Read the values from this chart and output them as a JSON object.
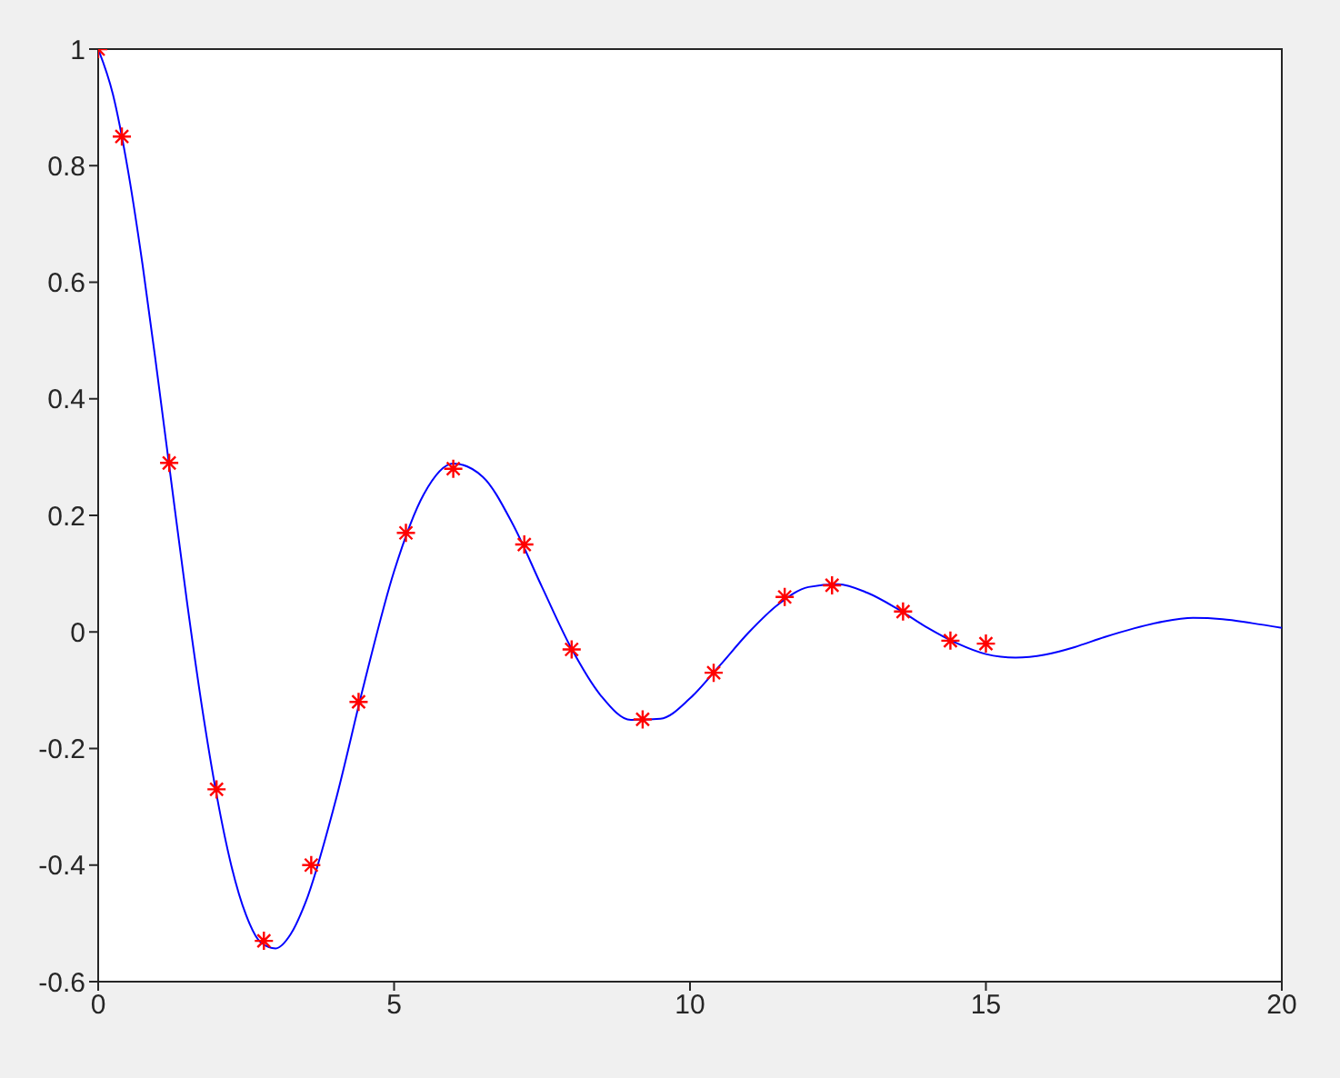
{
  "chart_data": {
    "type": "line",
    "xlim": [
      0,
      20
    ],
    "xticks": [
      0,
      5,
      10,
      15,
      20
    ],
    "ylim": [
      -0.6,
      1
    ],
    "yticks": [
      -0.6,
      -0.4,
      -0.2,
      0,
      0.2,
      0.4,
      0.6,
      0.8,
      1
    ],
    "legend": false,
    "series": [
      {
        "color": "#0000ff",
        "marker": "none",
        "line_style": "solid",
        "x": [
          0,
          0.25,
          0.5,
          0.75,
          1,
          1.25,
          1.5,
          1.75,
          2,
          2.25,
          2.5,
          2.75,
          3,
          3.25,
          3.5,
          4,
          4.5,
          5,
          5.5,
          6,
          6.5,
          7,
          7.5,
          8,
          8.5,
          9,
          9.5,
          10,
          10.5,
          11,
          11.5,
          12,
          12.5,
          13,
          13.5,
          14,
          14.5,
          15,
          15.5,
          16,
          16.5,
          17,
          17.5,
          18,
          18.5,
          19,
          19.5,
          20
        ],
        "values": [
          1,
          0.922,
          0.794,
          0.63,
          0.442,
          0.246,
          0.052,
          -0.126,
          -0.279,
          -0.401,
          -0.486,
          -0.533,
          -0.543,
          -0.519,
          -0.465,
          -0.294,
          -0.086,
          0.104,
          0.236,
          0.289,
          0.266,
          0.186,
          0.077,
          -0.029,
          -0.11,
          -0.151,
          -0.149,
          -0.114,
          -0.058,
          0,
          0.048,
          0.077,
          0.082,
          0.067,
          0.04,
          0.008,
          -0.019,
          -0.038,
          -0.044,
          -0.039,
          -0.026,
          -0.009,
          0.006,
          0.018,
          0.024,
          0.022,
          0.015,
          0.007
        ]
      },
      {
        "type": "scatter",
        "color": "#ff0000",
        "marker": "cross",
        "x": [
          0,
          0.4,
          1.2,
          2,
          2.8,
          3.6,
          4.4,
          5.2,
          6,
          7.2,
          8,
          9.2,
          10.4,
          11.6,
          12.4,
          13.6,
          14.4,
          15
        ],
        "values": [
          1,
          0.85,
          0.29,
          -0.27,
          -0.53,
          -0.4,
          -0.12,
          0.17,
          0.28,
          0.15,
          -0.03,
          -0.15,
          -0.07,
          0.06,
          0.08,
          0.035,
          -0.015,
          -0.02
        ]
      }
    ]
  }
}
